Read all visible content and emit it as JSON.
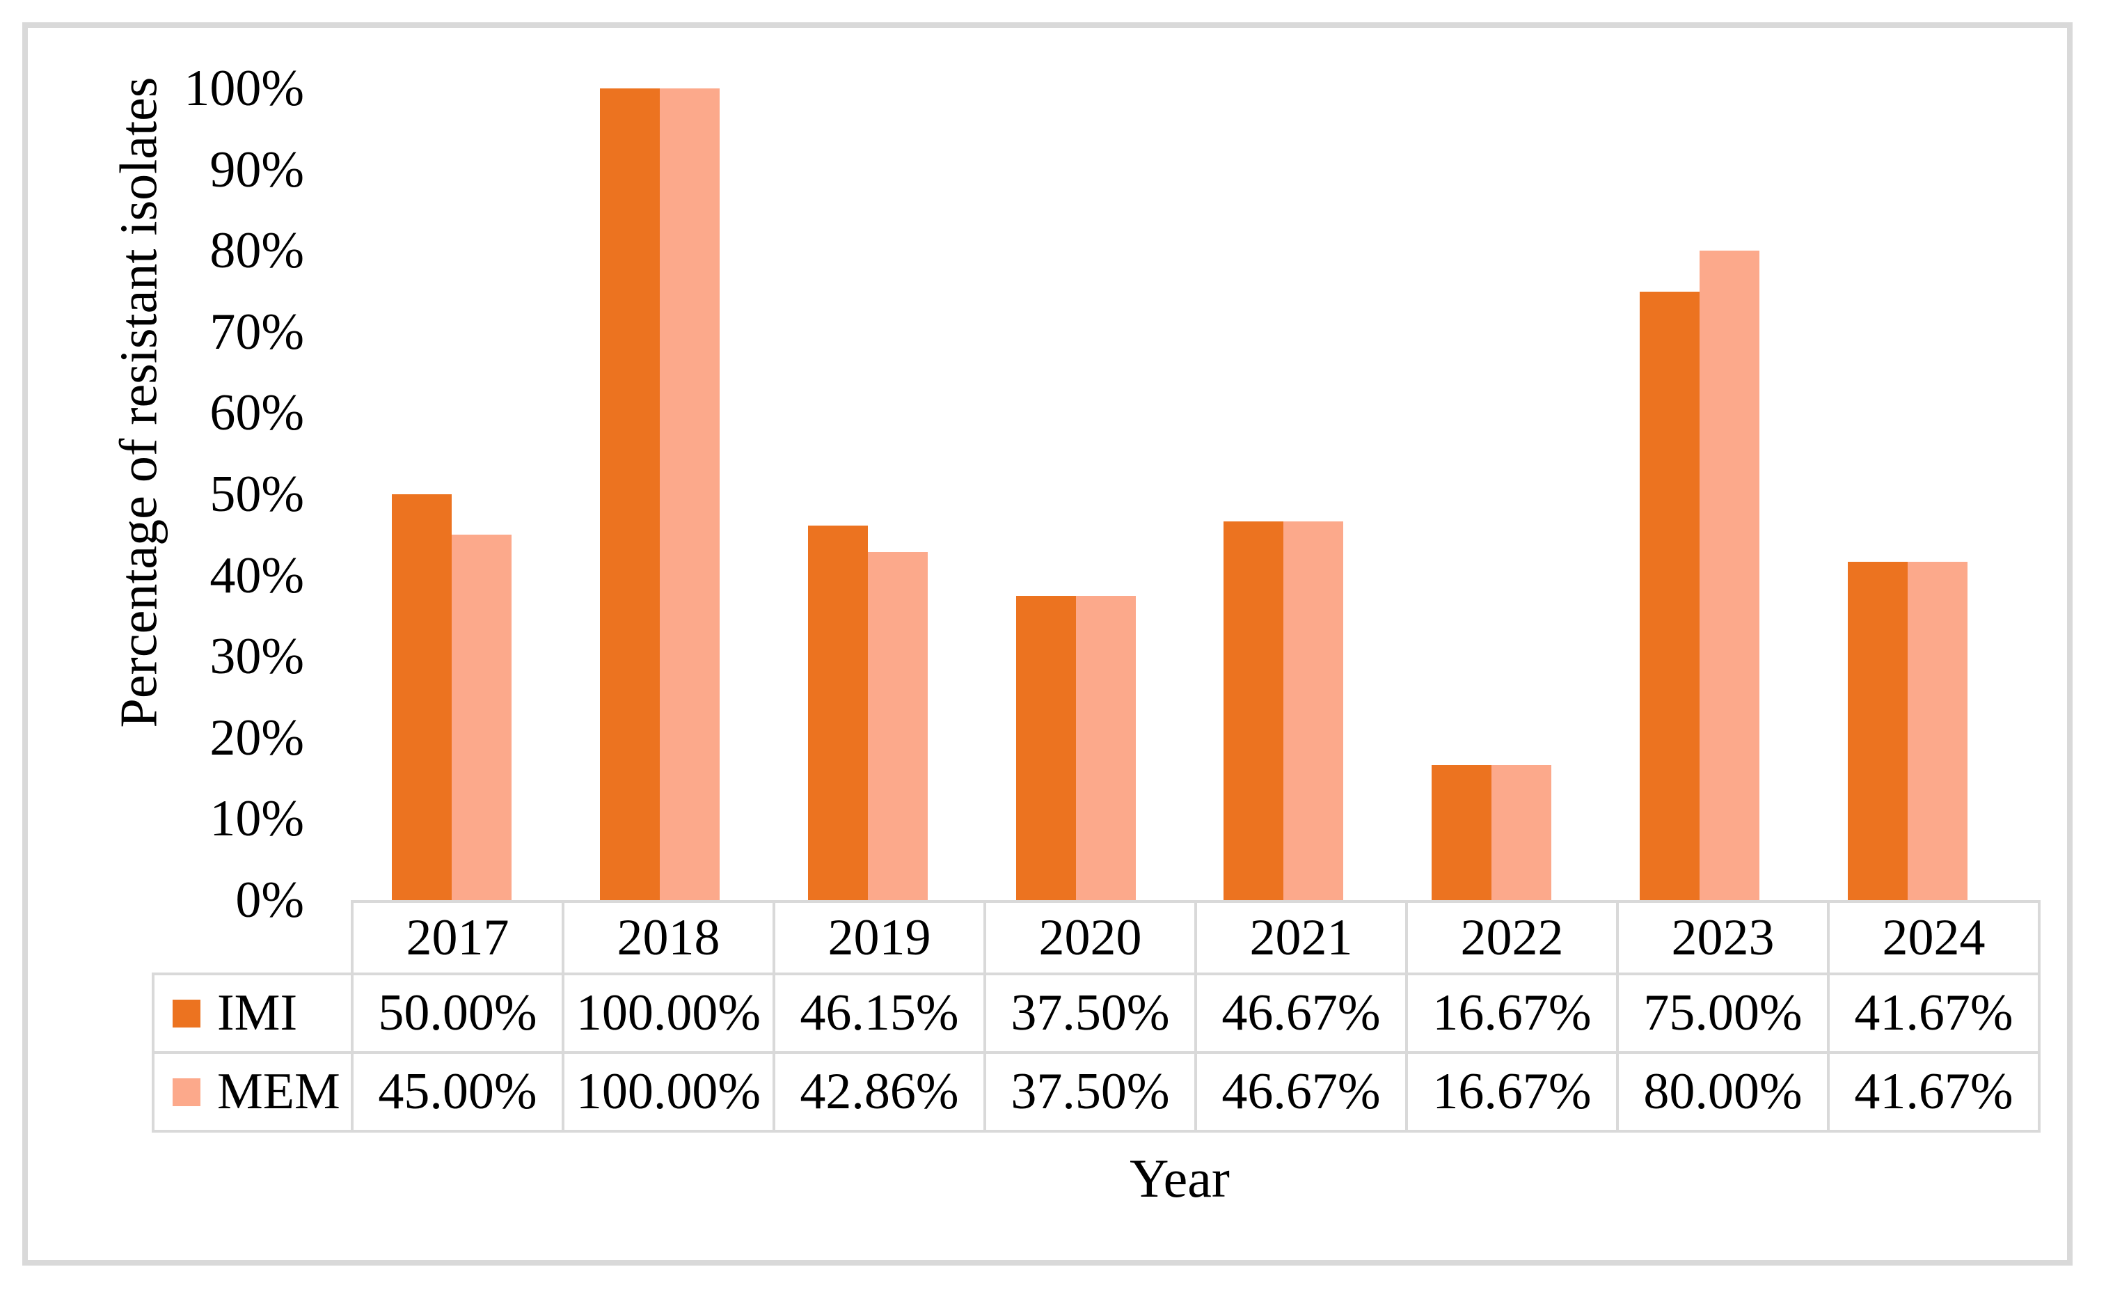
{
  "figure": {
    "y_axis_title": "Percentage of resistant isolates",
    "x_axis_title": "Year",
    "y_tick_labels": [
      "0%",
      "10%",
      "20%",
      "30%",
      "40%",
      "50%",
      "60%",
      "70%",
      "80%",
      "90%",
      "100%"
    ],
    "frame_border_color": "#D9D9D9",
    "table_border_color": "#D9D9D9"
  },
  "chart_data": {
    "type": "bar",
    "title": "",
    "xlabel": "Year",
    "ylabel": "Percentage of resistant isolates",
    "ylim": [
      0,
      100
    ],
    "y_tick_step": 10,
    "grid": false,
    "legend_position": "data-table-left",
    "categories": [
      "2017",
      "2018",
      "2019",
      "2020",
      "2021",
      "2022",
      "2023",
      "2024"
    ],
    "series": [
      {
        "name": "IMI",
        "color": "#EC7320",
        "values": [
          50.0,
          100.0,
          46.15,
          37.5,
          46.67,
          16.67,
          75.0,
          41.67
        ],
        "labels": [
          "50.00%",
          "100.00%",
          "46.15%",
          "37.50%",
          "46.67%",
          "16.67%",
          "75.00%",
          "41.67%"
        ]
      },
      {
        "name": "MEM",
        "color": "#FCA98B",
        "values": [
          45.0,
          100.0,
          42.86,
          37.5,
          46.67,
          16.67,
          80.0,
          41.67
        ],
        "labels": [
          "45.00%",
          "100.00%",
          "42.86%",
          "37.50%",
          "46.67%",
          "16.67%",
          "80.00%",
          "41.67%"
        ]
      }
    ]
  }
}
